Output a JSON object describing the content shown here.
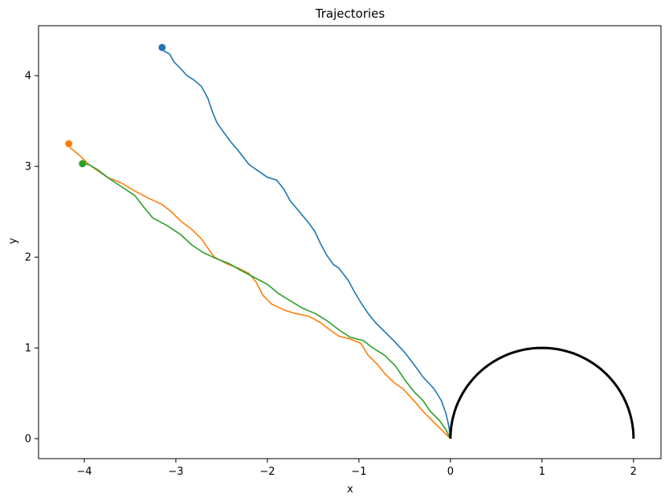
{
  "chart_data": {
    "type": "line",
    "title": "Trajectories",
    "xlabel": "x",
    "ylabel": "y",
    "xlim": [
      -4.5,
      2.3
    ],
    "ylim": [
      -0.22,
      4.55
    ],
    "grid": false,
    "x_ticks": [
      -4,
      -3,
      -2,
      -1,
      0,
      1,
      2
    ],
    "y_ticks": [
      0,
      1,
      2,
      3,
      4
    ],
    "x_tick_labels": [
      "−4",
      "−3",
      "−2",
      "−1",
      "0",
      "1",
      "2"
    ],
    "y_tick_labels": [
      "0",
      "1",
      "2",
      "3",
      "4"
    ],
    "series": [
      {
        "color": "#1f77b4",
        "start_marker": true,
        "points": [
          [
            -3.15,
            4.31
          ],
          [
            -3.13,
            4.27
          ],
          [
            -3.07,
            4.24
          ],
          [
            -3.02,
            4.15
          ],
          [
            -2.95,
            4.08
          ],
          [
            -2.88,
            4.0
          ],
          [
            -2.8,
            3.95
          ],
          [
            -2.72,
            3.88
          ],
          [
            -2.65,
            3.75
          ],
          [
            -2.6,
            3.6
          ],
          [
            -2.55,
            3.48
          ],
          [
            -2.48,
            3.38
          ],
          [
            -2.4,
            3.27
          ],
          [
            -2.3,
            3.15
          ],
          [
            -2.2,
            3.02
          ],
          [
            -2.1,
            2.95
          ],
          [
            -2.0,
            2.88
          ],
          [
            -1.9,
            2.85
          ],
          [
            -1.82,
            2.75
          ],
          [
            -1.75,
            2.62
          ],
          [
            -1.65,
            2.5
          ],
          [
            -1.55,
            2.38
          ],
          [
            -1.48,
            2.28
          ],
          [
            -1.42,
            2.15
          ],
          [
            -1.35,
            2.02
          ],
          [
            -1.28,
            1.92
          ],
          [
            -1.22,
            1.88
          ],
          [
            -1.12,
            1.75
          ],
          [
            -1.05,
            1.62
          ],
          [
            -0.98,
            1.5
          ],
          [
            -0.9,
            1.38
          ],
          [
            -0.82,
            1.28
          ],
          [
            -0.72,
            1.18
          ],
          [
            -0.62,
            1.08
          ],
          [
            -0.5,
            0.95
          ],
          [
            -0.4,
            0.82
          ],
          [
            -0.3,
            0.68
          ],
          [
            -0.18,
            0.55
          ],
          [
            -0.1,
            0.42
          ],
          [
            -0.05,
            0.28
          ],
          [
            -0.02,
            0.15
          ],
          [
            0.0,
            0.0
          ]
        ]
      },
      {
        "color": "#ff7f0e",
        "start_marker": true,
        "points": [
          [
            -4.17,
            3.25
          ],
          [
            -4.15,
            3.2
          ],
          [
            -4.05,
            3.12
          ],
          [
            -3.95,
            3.02
          ],
          [
            -3.85,
            2.95
          ],
          [
            -3.75,
            2.88
          ],
          [
            -3.6,
            2.82
          ],
          [
            -3.45,
            2.73
          ],
          [
            -3.3,
            2.65
          ],
          [
            -3.15,
            2.58
          ],
          [
            -3.05,
            2.5
          ],
          [
            -2.95,
            2.4
          ],
          [
            -2.82,
            2.3
          ],
          [
            -2.72,
            2.2
          ],
          [
            -2.65,
            2.1
          ],
          [
            -2.58,
            2.0
          ],
          [
            -2.45,
            1.93
          ],
          [
            -2.32,
            1.88
          ],
          [
            -2.2,
            1.82
          ],
          [
            -2.12,
            1.72
          ],
          [
            -2.05,
            1.58
          ],
          [
            -1.95,
            1.48
          ],
          [
            -1.82,
            1.42
          ],
          [
            -1.7,
            1.38
          ],
          [
            -1.55,
            1.35
          ],
          [
            -1.42,
            1.28
          ],
          [
            -1.32,
            1.2
          ],
          [
            -1.22,
            1.13
          ],
          [
            -1.1,
            1.1
          ],
          [
            -0.98,
            1.05
          ],
          [
            -0.9,
            0.92
          ],
          [
            -0.8,
            0.82
          ],
          [
            -0.72,
            0.72
          ],
          [
            -0.62,
            0.62
          ],
          [
            -0.52,
            0.55
          ],
          [
            -0.4,
            0.42
          ],
          [
            -0.3,
            0.3
          ],
          [
            -0.2,
            0.2
          ],
          [
            -0.12,
            0.12
          ],
          [
            -0.05,
            0.05
          ],
          [
            0.0,
            0.0
          ]
        ]
      },
      {
        "color": "#2ca02c",
        "start_marker": true,
        "points": [
          [
            -4.02,
            3.03
          ],
          [
            -3.95,
            3.02
          ],
          [
            -3.85,
            2.96
          ],
          [
            -3.72,
            2.86
          ],
          [
            -3.6,
            2.78
          ],
          [
            -3.45,
            2.68
          ],
          [
            -3.35,
            2.55
          ],
          [
            -3.25,
            2.43
          ],
          [
            -3.1,
            2.35
          ],
          [
            -2.95,
            2.25
          ],
          [
            -2.82,
            2.13
          ],
          [
            -2.7,
            2.05
          ],
          [
            -2.55,
            1.98
          ],
          [
            -2.42,
            1.93
          ],
          [
            -2.3,
            1.86
          ],
          [
            -2.15,
            1.78
          ],
          [
            -2.0,
            1.7
          ],
          [
            -1.88,
            1.6
          ],
          [
            -1.75,
            1.52
          ],
          [
            -1.62,
            1.44
          ],
          [
            -1.48,
            1.38
          ],
          [
            -1.35,
            1.3
          ],
          [
            -1.22,
            1.2
          ],
          [
            -1.1,
            1.12
          ],
          [
            -0.95,
            1.08
          ],
          [
            -0.85,
            1.0
          ],
          [
            -0.72,
            0.92
          ],
          [
            -0.6,
            0.8
          ],
          [
            -0.5,
            0.65
          ],
          [
            -0.4,
            0.52
          ],
          [
            -0.3,
            0.42
          ],
          [
            -0.22,
            0.3
          ],
          [
            -0.12,
            0.2
          ],
          [
            -0.05,
            0.1
          ],
          [
            0.0,
            0.0
          ]
        ]
      },
      {
        "color": "#000000",
        "start_marker": false,
        "semicircle": {
          "cx": 1,
          "cy": 0,
          "r": 1
        }
      }
    ]
  }
}
